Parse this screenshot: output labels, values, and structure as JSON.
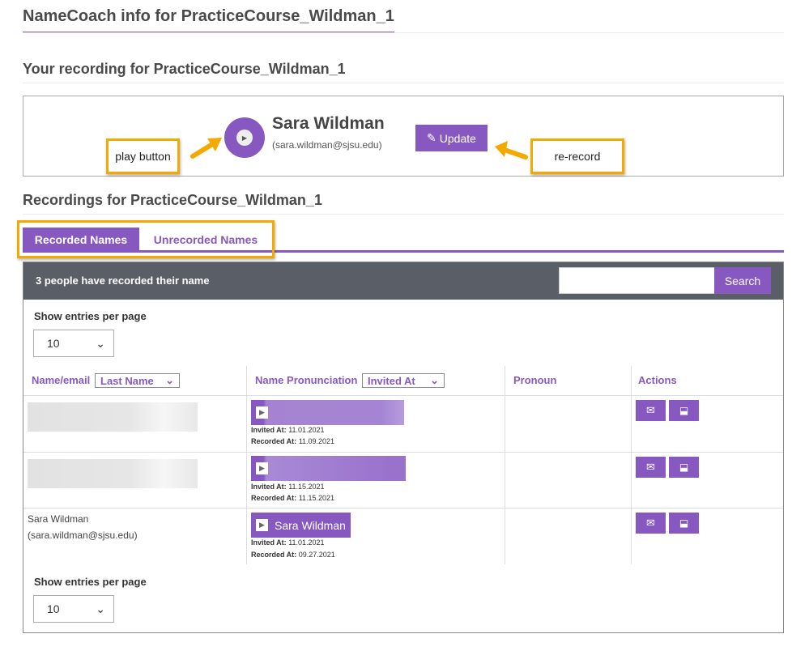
{
  "page_title": "NameCoach info for PracticeCourse_Wildman_1",
  "your_recording": {
    "heading": "Your recording for PracticeCourse_Wildman_1",
    "name": "Sara Wildman",
    "email": "(sara.wildman@sjsu.edu)",
    "update_label": "Update"
  },
  "annotations": {
    "play": "play button",
    "rerecord": "re-record"
  },
  "recordings": {
    "heading": "Recordings for PracticeCourse_Wildman_1",
    "tabs": [
      {
        "label": "Recorded Names",
        "active": true
      },
      {
        "label": "Unrecorded Names",
        "active": false
      }
    ],
    "count_text": "3 people have recorded their name",
    "search_label": "Search",
    "search_value": "",
    "show_entries": "Show entries per page",
    "entries_value": "10",
    "columns": {
      "name": "Name/email",
      "name_sort": "Last Name",
      "pron": "Name Pronunciation",
      "pron_sort": "Invited At",
      "pronoun": "Pronoun",
      "actions": "Actions"
    },
    "rows": [
      {
        "name": "",
        "email": "",
        "button": "",
        "invited": "11.01.2021",
        "recorded": "11.09.2021",
        "redacted": true
      },
      {
        "name": "",
        "email": "",
        "button": "",
        "invited": "11.15.2021",
        "recorded": "11.15.2021",
        "redacted": true
      },
      {
        "name": "Sara Wildman",
        "email": "(sara.wildman@sjsu.edu)",
        "button": "Sara Wildman",
        "invited": "11.01.2021",
        "recorded": "09.27.2021",
        "redacted": false
      }
    ],
    "invited_label": "Invited At:",
    "recorded_label": "Recorded At:"
  },
  "colors": {
    "accent": "#8759c0",
    "header": "#5a5f67",
    "annotation": "#f5a800"
  }
}
